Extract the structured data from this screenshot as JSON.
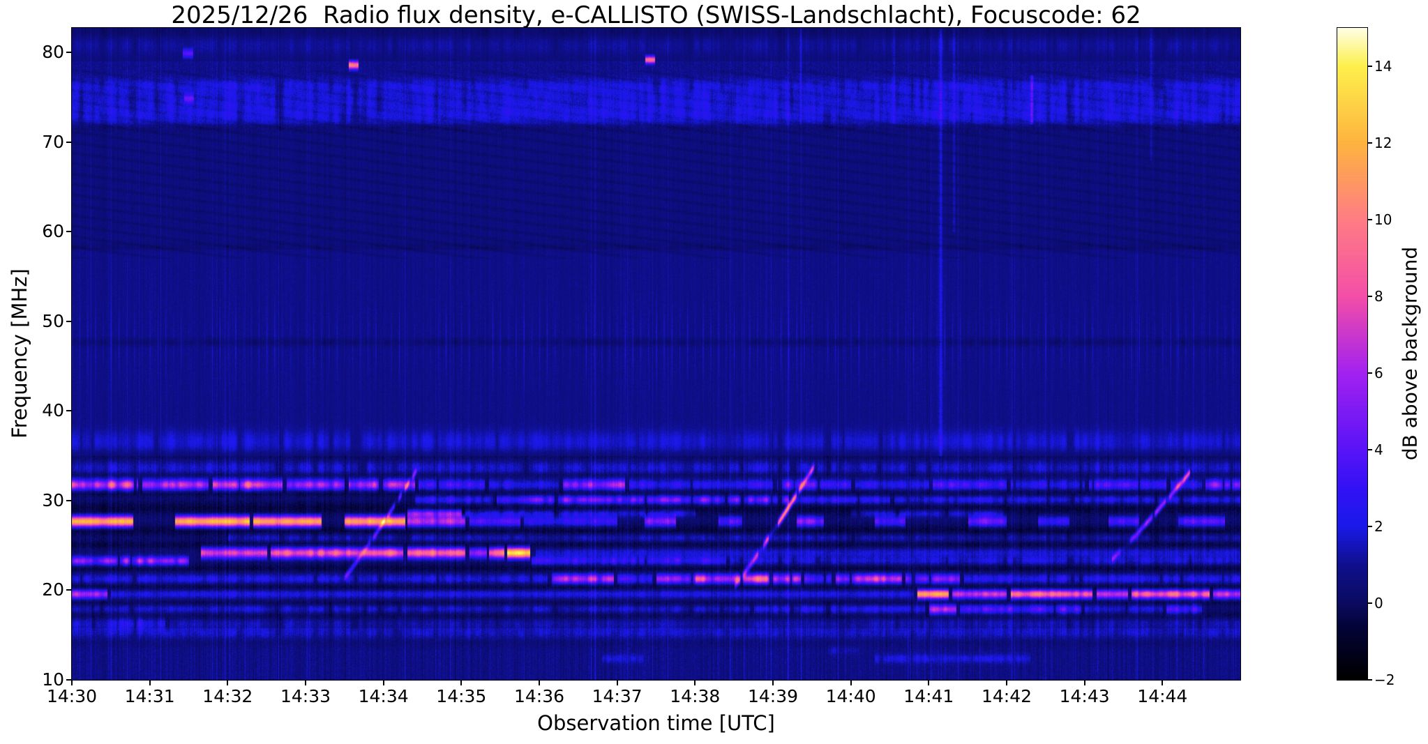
{
  "title": "2025/12/26  Radio flux density, e-CALLISTO (SWISS-Landschlacht), Focuscode: 62",
  "chart_data": {
    "type": "heatmap",
    "subtype": "radio-spectrogram",
    "title": "2025/12/26  Radio flux density, e-CALLISTO (SWISS-Landschlacht), Focuscode: 62",
    "xlabel": "Observation time [UTC]",
    "ylabel": "Frequency [MHz]",
    "colorbar_label": "dB above background",
    "time_start": "14:30",
    "time_span_minutes": 15,
    "freq_range": [
      10,
      82.72
    ],
    "value_range_db": [
      -2,
      15
    ],
    "grid": false,
    "x_ticks": [
      {
        "label": "14:30",
        "minute": 0
      },
      {
        "label": "14:31",
        "minute": 1
      },
      {
        "label": "14:32",
        "minute": 2
      },
      {
        "label": "14:33",
        "minute": 3
      },
      {
        "label": "14:34",
        "minute": 4
      },
      {
        "label": "14:35",
        "minute": 5
      },
      {
        "label": "14:36",
        "minute": 6
      },
      {
        "label": "14:37",
        "minute": 7
      },
      {
        "label": "14:38",
        "minute": 8
      },
      {
        "label": "14:39",
        "minute": 9
      },
      {
        "label": "14:40",
        "minute": 10
      },
      {
        "label": "14:41",
        "minute": 11
      },
      {
        "label": "14:42",
        "minute": 12
      },
      {
        "label": "14:43",
        "minute": 13
      },
      {
        "label": "14:44",
        "minute": 14
      }
    ],
    "y_ticks": [
      10,
      20,
      30,
      40,
      50,
      60,
      70,
      80
    ],
    "colorbar_ticks": [
      {
        "value": 14,
        "label": "14"
      },
      {
        "value": 12,
        "label": "12"
      },
      {
        "value": 10,
        "label": "10"
      },
      {
        "value": 8,
        "label": "8"
      },
      {
        "value": 6,
        "label": "6"
      },
      {
        "value": 4,
        "label": "4"
      },
      {
        "value": 2,
        "label": "2"
      },
      {
        "value": 0,
        "label": "0"
      },
      {
        "value": -2,
        "label": "−2"
      }
    ],
    "colormap_stops": [
      [
        -2,
        "#000000"
      ],
      [
        -0.6,
        "#04043a"
      ],
      [
        0,
        "#0b0b62"
      ],
      [
        1,
        "#10108f"
      ],
      [
        2,
        "#1a1aea"
      ],
      [
        3,
        "#3312f5"
      ],
      [
        4,
        "#5a14f8"
      ],
      [
        6,
        "#a322f0"
      ],
      [
        8,
        "#f44fa8"
      ],
      [
        10,
        "#ff7d84"
      ],
      [
        12,
        "#fdb43f"
      ],
      [
        14,
        "#fdf04c"
      ],
      [
        15,
        "#ffffe8"
      ]
    ],
    "background_levels": [
      {
        "f_min": 79,
        "f_max": 99,
        "level_db": 0.55
      },
      {
        "f_min": 72,
        "f_max": 79,
        "level_db": 0.9
      },
      {
        "f_min": 58,
        "f_max": 72,
        "level_db": 0.65
      },
      {
        "f_min": 48.5,
        "f_max": 58,
        "level_db": 0.85
      },
      {
        "f_min": 35,
        "f_max": 48.5,
        "level_db": 0.85
      },
      {
        "f_min": 15.8,
        "f_max": 35,
        "level_db": 0.35
      },
      {
        "f_min": 0,
        "f_max": 15.8,
        "level_db": 0.8
      }
    ],
    "dark_lanes": [
      {
        "f": 82.3,
        "hw": 0.8,
        "depth": 0.55,
        "dash": 0.7
      },
      {
        "f": 71.6,
        "hw": 0.5,
        "depth": 0.45,
        "dash": 0.8
      },
      {
        "f": 58.3,
        "hw": 0.5,
        "depth": 0.4,
        "dash": 0.75
      },
      {
        "f": 47.7,
        "hw": 0.5,
        "depth": 0.75,
        "dash": 0.75
      },
      {
        "f": 35.1,
        "hw": 0.7,
        "depth": 0.55,
        "dash": 0.4
      },
      {
        "f": 32.9,
        "hw": 0.35,
        "depth": 0.5,
        "dash": 0.4
      },
      {
        "f": 30.9,
        "hw": 0.45,
        "depth": 0.75,
        "dash": 0.3
      },
      {
        "f": 29.2,
        "hw": 0.8,
        "depth": 0.95,
        "dash": 0.25
      },
      {
        "f": 26.7,
        "hw": 0.7,
        "depth": 0.95,
        "dash": 0.25
      },
      {
        "f": 25.1,
        "hw": 0.5,
        "depth": 0.85,
        "dash": 0.3
      },
      {
        "f": 22.5,
        "hw": 0.5,
        "depth": 0.85,
        "dash": 0.3
      },
      {
        "f": 20.4,
        "hw": 0.45,
        "depth": 0.8,
        "dash": 0.3
      },
      {
        "f": 18.6,
        "hw": 0.35,
        "depth": 0.6,
        "dash": 0.3
      },
      {
        "f": 17.2,
        "hw": 0.5,
        "depth": 0.75,
        "dash": 0.3
      },
      {
        "f": 14.2,
        "hw": 0.7,
        "depth": 0.35,
        "dash": 0.4
      }
    ],
    "bands": [
      {
        "f": 78.6,
        "hw": 0.45,
        "dash": 0.2,
        "segments": [
          [
            3.55,
            3.68,
            10.5
          ]
        ]
      },
      {
        "f": 79.2,
        "hw": 0.4,
        "dash": 0.2,
        "segments": [
          [
            7.36,
            7.48,
            9.5
          ]
        ]
      },
      {
        "f": 79.9,
        "hw": 0.5,
        "dash": 0.3,
        "segments": [
          [
            1.42,
            1.55,
            3.5
          ]
        ]
      },
      {
        "f": 74.9,
        "hw": 0.5,
        "dash": 0.4,
        "segments": [
          [
            1.44,
            1.56,
            3.2
          ]
        ]
      },
      {
        "f": 80.8,
        "hw": 1.2,
        "dash": 0.9,
        "segments": [
          [
            0,
            15,
            0.9
          ]
        ]
      },
      {
        "f": 74.6,
        "hw": 1.7,
        "dash": 0.88,
        "segments": [
          [
            0,
            15,
            1.7
          ]
        ]
      },
      {
        "f": 76.3,
        "hw": 0.8,
        "dash": 0.9,
        "segments": [
          [
            0,
            15,
            1.3
          ]
        ]
      },
      {
        "f": 72.9,
        "hw": 1.0,
        "dash": 0.9,
        "segments": [
          [
            0,
            15,
            1.4
          ],
          [
            10.8,
            11.4,
            2.6
          ],
          [
            12.2,
            12.45,
            3.4
          ]
        ]
      },
      {
        "f": 36.6,
        "hw": 1.3,
        "dash": 0.88,
        "segments": [
          [
            0,
            15,
            1.5
          ]
        ]
      },
      {
        "f": 33.7,
        "hw": 0.8,
        "dash": 0.88,
        "segments": [
          [
            0,
            15,
            2.2
          ],
          [
            5.9,
            6.5,
            3.2
          ],
          [
            9.05,
            9.35,
            3.0
          ],
          [
            11.0,
            11.25,
            3.0
          ]
        ]
      },
      {
        "f": 31.8,
        "hw": 0.6,
        "dash": 0.75,
        "segments": [
          [
            0,
            0.85,
            11
          ],
          [
            0.9,
            1.75,
            8.5
          ],
          [
            1.8,
            2.7,
            10.5
          ],
          [
            2.75,
            3.5,
            7.5
          ],
          [
            3.55,
            4.4,
            9.5
          ],
          [
            4.45,
            5.3,
            4
          ],
          [
            5.35,
            6.25,
            3
          ],
          [
            6.3,
            7.1,
            7.5
          ],
          [
            7.15,
            9.0,
            3.5
          ],
          [
            9.05,
            10.0,
            5
          ],
          [
            10.05,
            11.0,
            3.2
          ],
          [
            11.05,
            12.0,
            4.5
          ],
          [
            12.05,
            13.0,
            3.2
          ],
          [
            13.05,
            14.05,
            5
          ],
          [
            14.1,
            14.5,
            4
          ],
          [
            14.55,
            15,
            7
          ]
        ]
      },
      {
        "f": 30.1,
        "hw": 0.5,
        "dash": 0.85,
        "segments": [
          [
            4.4,
            5.4,
            4
          ],
          [
            5.45,
            9.2,
            6.5
          ],
          [
            9.25,
            10.5,
            4
          ],
          [
            10.55,
            15,
            3
          ]
        ]
      },
      {
        "f": 27.7,
        "hw": 0.6,
        "dash": 0.55,
        "segments": [
          [
            0,
            0.78,
            13.5
          ],
          [
            1.32,
            2.28,
            13
          ],
          [
            2.32,
            3.2,
            12.5
          ],
          [
            3.5,
            4.28,
            13
          ],
          [
            4.3,
            5.05,
            8.5
          ],
          [
            5.1,
            5.75,
            5
          ],
          [
            5.8,
            7.0,
            3.5
          ],
          [
            7.35,
            7.75,
            6
          ],
          [
            8.3,
            8.6,
            5
          ],
          [
            9.3,
            9.65,
            6.5
          ],
          [
            10.3,
            10.7,
            4.5
          ],
          [
            11.5,
            12.0,
            5.5
          ],
          [
            12.4,
            12.8,
            4
          ],
          [
            13.3,
            13.7,
            4.5
          ],
          [
            14.2,
            14.8,
            5
          ]
        ]
      },
      {
        "f": 28.6,
        "hw": 0.45,
        "dash": 0.8,
        "segments": [
          [
            4.3,
            5.0,
            7
          ],
          [
            5.05,
            8.0,
            3
          ],
          [
            10.0,
            12.0,
            2.5
          ]
        ]
      },
      {
        "f": 25.9,
        "hw": 0.5,
        "dash": 0.9,
        "segments": [
          [
            2.0,
            10.0,
            2.0
          ],
          [
            10.05,
            15,
            1.6
          ]
        ]
      },
      {
        "f": 24.2,
        "hw": 0.6,
        "dash": 0.45,
        "segments": [
          [
            1.65,
            2.5,
            9
          ],
          [
            2.55,
            4.25,
            10.5
          ],
          [
            4.3,
            5.05,
            11
          ],
          [
            5.1,
            5.32,
            7
          ],
          [
            5.35,
            5.55,
            11.5
          ],
          [
            5.58,
            5.88,
            14.6
          ],
          [
            5.95,
            15,
            1.8
          ]
        ]
      },
      {
        "f": 23.3,
        "hw": 0.5,
        "dash": 0.82,
        "segments": [
          [
            0,
            1.5,
            8
          ],
          [
            5.9,
            8.4,
            4
          ],
          [
            8.45,
            15,
            2.2
          ]
        ]
      },
      {
        "f": 21.3,
        "hw": 0.55,
        "dash": 0.78,
        "segments": [
          [
            0,
            6.1,
            2.6
          ],
          [
            6.15,
            6.95,
            8.5
          ],
          [
            7.0,
            7.45,
            4
          ],
          [
            7.5,
            8.0,
            7
          ],
          [
            8.0,
            9.35,
            10.5
          ],
          [
            9.4,
            9.75,
            5
          ],
          [
            9.8,
            10.65,
            10
          ],
          [
            10.7,
            11.4,
            7
          ],
          [
            11.45,
            15,
            3
          ]
        ]
      },
      {
        "f": 19.6,
        "hw": 0.5,
        "dash": 0.5,
        "segments": [
          [
            0,
            0.45,
            8
          ],
          [
            0.5,
            10.8,
            2.2
          ],
          [
            10.85,
            11.25,
            13
          ],
          [
            11.3,
            12.0,
            8
          ],
          [
            12.05,
            13.1,
            11
          ],
          [
            13.15,
            13.55,
            8
          ],
          [
            13.6,
            14.6,
            11
          ],
          [
            14.65,
            15,
            8
          ]
        ]
      },
      {
        "f": 17.9,
        "hw": 0.55,
        "dash": 0.85,
        "segments": [
          [
            0,
            8.7,
            2.0
          ],
          [
            8.75,
            10.95,
            3
          ],
          [
            11.0,
            11.35,
            9.5
          ],
          [
            11.4,
            12.95,
            5
          ],
          [
            13.0,
            14.0,
            2.5
          ],
          [
            14.05,
            14.5,
            4.5
          ]
        ]
      },
      {
        "f": 16.3,
        "hw": 0.75,
        "dash": 0.9,
        "segments": [
          [
            0,
            1.2,
            3.2
          ],
          [
            1.25,
            15,
            1.5
          ]
        ]
      },
      {
        "f": 15.2,
        "hw": 0.6,
        "dash": 0.92,
        "segments": [
          [
            0,
            15,
            1.2
          ]
        ]
      },
      {
        "f": 12.4,
        "hw": 0.5,
        "dash": 0.93,
        "segments": [
          [
            6.8,
            7.4,
            1.7
          ],
          [
            10.3,
            12.3,
            1.9
          ]
        ]
      },
      {
        "f": 13.3,
        "hw": 0.5,
        "dash": 0.93,
        "segments": [
          [
            9.7,
            10.1,
            1.6
          ]
        ]
      }
    ],
    "bursts": [
      {
        "t0": 3.5,
        "f0": 21.5,
        "t1": 4.45,
        "f1": 33.8,
        "p0": 3.5,
        "pm": 6,
        "p1": 7.5,
        "width": 0.45,
        "dash": 0.65
      },
      {
        "t0": 8.5,
        "f0": 20.5,
        "t1": 9.55,
        "f1": 34.2,
        "p0": 4,
        "pm": 13,
        "p1": 7,
        "width": 0.5,
        "dash": 0.55
      },
      {
        "t0": 13.35,
        "f0": 23.5,
        "t1": 14.35,
        "f1": 33.2,
        "p0": 4,
        "pm": 8,
        "p1": 8.5,
        "width": 0.45,
        "dash": 0.6
      }
    ],
    "vertical_streaks": [
      {
        "t": 11.15,
        "f0": 35,
        "f1": 82.7,
        "amp": 1.6,
        "w": 2.5
      },
      {
        "t": 11.32,
        "f0": 60,
        "f1": 82.7,
        "amp": 1.2,
        "w": 1.5
      },
      {
        "t": 12.32,
        "f0": 72,
        "f1": 77.5,
        "amp": 3.0,
        "w": 2.0
      },
      {
        "t": 9.35,
        "f0": 72,
        "f1": 82.7,
        "amp": 1.2,
        "w": 1.5
      },
      {
        "t": 10.55,
        "f0": 72,
        "f1": 82.7,
        "amp": 1.1,
        "w": 1.5
      },
      {
        "t": 13.85,
        "f0": 68,
        "f1": 82.7,
        "amp": 1.2,
        "w": 1.5
      }
    ],
    "calibration_spikes": {
      "f_center": 47.7,
      "f_halfwidth": 4.6,
      "period_min": 0.1,
      "amp_db": 1.0
    }
  }
}
